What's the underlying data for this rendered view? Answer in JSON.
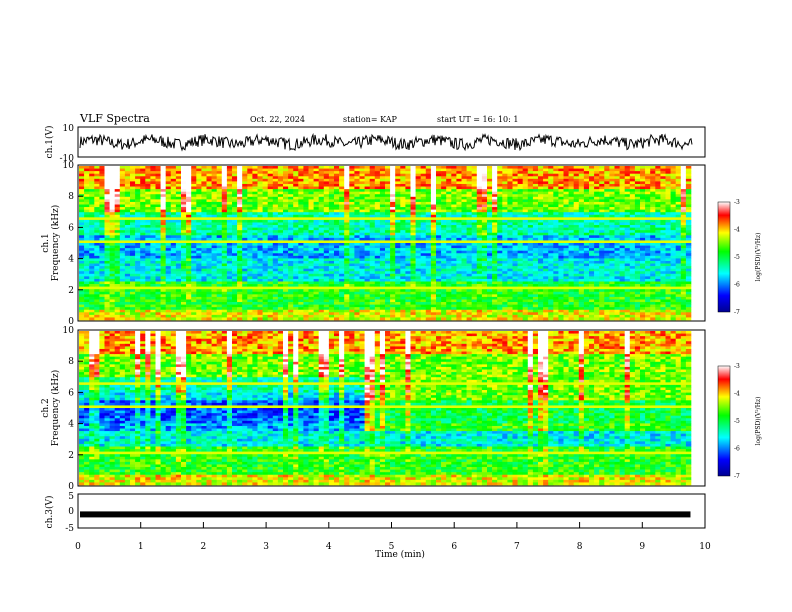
{
  "header": {
    "title": "VLF Spectra",
    "date": "Oct. 22, 2024",
    "station": "station= KAP",
    "start": "start  UT =   16: 10: 1"
  },
  "chart_data": [
    {
      "type": "line",
      "panel": "ch1_waveform",
      "ylabel": "ch.1(V)",
      "ylim": [
        -10,
        10
      ],
      "yticks": [
        "10",
        "-10"
      ],
      "xlim": [
        0,
        10
      ],
      "summary": "noisy signal fluctuating mostly between about -4 and 5 V"
    },
    {
      "type": "heatmap",
      "panel": "ch1_spectrogram",
      "ylabel": "ch.1\nFrequency (kHz)",
      "ylim": [
        0,
        10
      ],
      "yticks": [
        "0",
        "2",
        "4",
        "6",
        "8",
        "10"
      ],
      "xlim": [
        0,
        10
      ],
      "colorbar": {
        "label": "log(PSD)(V²/Hz)",
        "range": [
          -7,
          -3
        ],
        "ticks": [
          "-3",
          "-4",
          "-5",
          "-6",
          "-7"
        ]
      }
    },
    {
      "type": "heatmap",
      "panel": "ch2_spectrogram",
      "ylabel": "ch.2\nFrequency (kHz)",
      "ylim": [
        0,
        10
      ],
      "yticks": [
        "0",
        "2",
        "4",
        "6",
        "8",
        "10"
      ],
      "xlim": [
        0,
        10
      ],
      "colorbar": {
        "label": "log(PSD)(V²/Hz)",
        "range": [
          -7,
          -3
        ],
        "ticks": [
          "-3",
          "-4",
          "-5",
          "-6",
          "-7"
        ]
      }
    },
    {
      "type": "line",
      "panel": "ch3_waveform",
      "ylabel": "ch.3(V)",
      "ylim": [
        -5,
        5
      ],
      "yticks": [
        "5",
        "0",
        "-5"
      ],
      "xlim": [
        0,
        10
      ],
      "xlabel": "Time  (min)",
      "xticks": [
        "0",
        "1",
        "2",
        "3",
        "4",
        "5",
        "6",
        "7",
        "8",
        "9",
        "10"
      ],
      "summary": "thick flat band near -1 V from 0 to about 9.8 min"
    }
  ],
  "labels": {
    "ch1_top": "10",
    "ch1_bottom": "-10",
    "ch1_axis": "ch.1(V)",
    "ch1_freq_a": "ch.1",
    "ch1_freq_b": "Frequency  (kHz)",
    "ch2_freq_a": "ch.2",
    "ch2_freq_b": "Frequency  (kHz)",
    "ch3_axis": "ch.3(V)",
    "xlabel": "Time  (min)",
    "cbar_label": "log(PSD)(V²/Hz)"
  }
}
